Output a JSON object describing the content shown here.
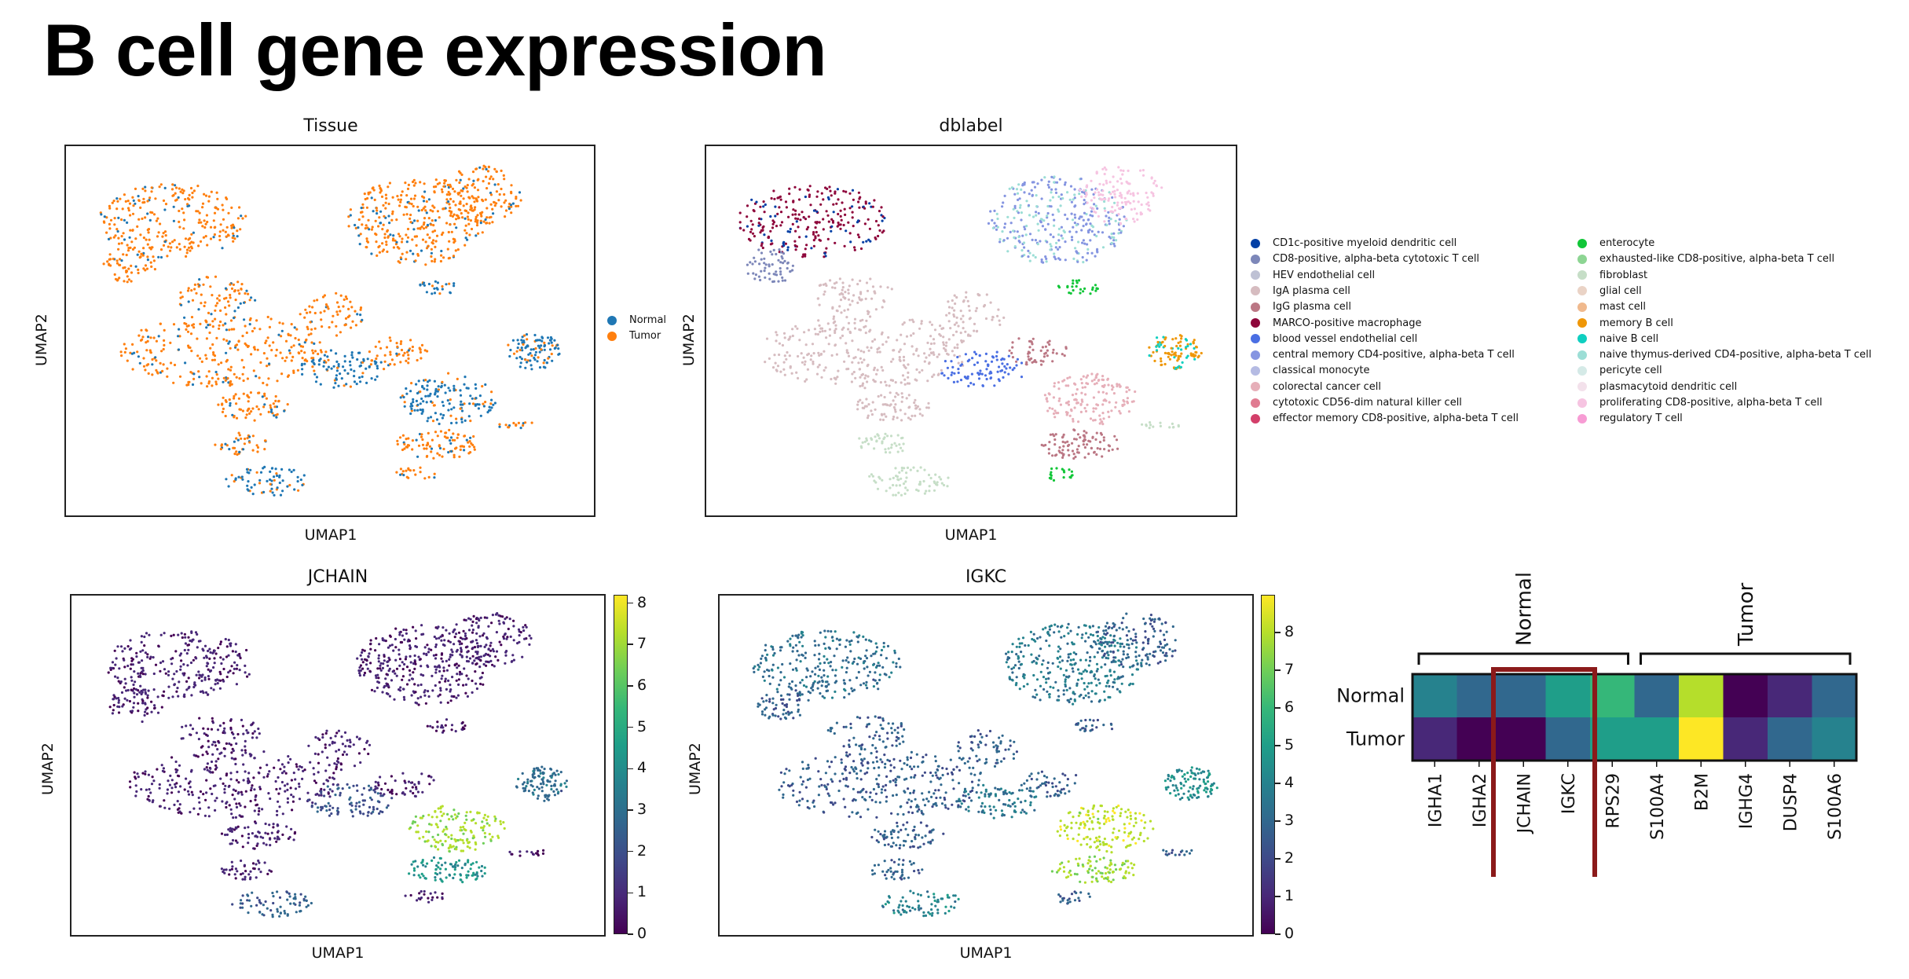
{
  "page": {
    "title": "B cell gene expression"
  },
  "panels": {
    "tissue": {
      "title": "Tissue",
      "xlabel": "UMAP1",
      "ylabel": "UMAP2",
      "legend": [
        {
          "label": "Normal",
          "color": "#1f77b4"
        },
        {
          "label": "Tumor",
          "color": "#ff7f0e"
        }
      ]
    },
    "dblabel": {
      "title": "dblabel",
      "xlabel": "UMAP1",
      "ylabel": "UMAP2",
      "legend": [
        {
          "label": "CD1c-positive myeloid dendritic cell",
          "color": "#023fa5"
        },
        {
          "label": "CD8-positive, alpha-beta cytotoxic T cell",
          "color": "#7d87b9"
        },
        {
          "label": "HEV endothelial cell",
          "color": "#bec1d4"
        },
        {
          "label": "IgA plasma cell",
          "color": "#d6bcc0"
        },
        {
          "label": "IgG plasma cell",
          "color": "#bb7784"
        },
        {
          "label": "MARCO-positive macrophage",
          "color": "#8e063b"
        },
        {
          "label": "blood vessel endothelial cell",
          "color": "#4a6fe3"
        },
        {
          "label": "central memory CD4-positive, alpha-beta T cell",
          "color": "#8595e1"
        },
        {
          "label": "classical monocyte",
          "color": "#b5bbe3"
        },
        {
          "label": "colorectal cancer cell",
          "color": "#e6afb9"
        },
        {
          "label": "cytotoxic CD56-dim natural killer cell",
          "color": "#e07b91"
        },
        {
          "label": "effector memory CD8-positive, alpha-beta T cell",
          "color": "#d33f6a"
        },
        {
          "label": "enterocyte",
          "color": "#11c638"
        },
        {
          "label": "exhausted-like CD8-positive, alpha-beta T cell",
          "color": "#8dd593"
        },
        {
          "label": "fibroblast",
          "color": "#c6dec7"
        },
        {
          "label": "glial cell",
          "color": "#ead3c6"
        },
        {
          "label": "mast cell",
          "color": "#f0b98d"
        },
        {
          "label": "memory B cell",
          "color": "#ef9708"
        },
        {
          "label": "naive B cell",
          "color": "#0fcfc0"
        },
        {
          "label": "naive thymus-derived CD4-positive, alpha-beta T cell",
          "color": "#9cded6"
        },
        {
          "label": "pericyte cell",
          "color": "#d5eae7"
        },
        {
          "label": "plasmacytoid dendritic cell",
          "color": "#f3e1eb"
        },
        {
          "label": "proliferating CD8-positive, alpha-beta T cell",
          "color": "#f6c4e1"
        },
        {
          "label": "regulatory T cell",
          "color": "#f79cd4"
        }
      ]
    },
    "jchain": {
      "title": "JCHAIN",
      "xlabel": "UMAP1",
      "ylabel": "UMAP2",
      "colorbar_ticks": [
        "0",
        "1",
        "2",
        "3",
        "4",
        "5",
        "6",
        "7",
        "8"
      ],
      "colorbar_range": [
        0,
        8.2
      ]
    },
    "igkc": {
      "title": "IGKC",
      "xlabel": "UMAP1",
      "ylabel": "UMAP2",
      "colorbar_ticks": [
        "0",
        "1",
        "2",
        "3",
        "4",
        "5",
        "6",
        "7",
        "8"
      ],
      "colorbar_range": [
        0,
        9.0
      ]
    }
  },
  "chart_data": [
    {
      "type": "scatter",
      "title": "Tissue",
      "xlabel": "UMAP1",
      "ylabel": "UMAP2",
      "series": [
        {
          "name": "Normal"
        },
        {
          "name": "Tumor"
        }
      ]
    },
    {
      "type": "scatter",
      "title": "dblabel",
      "xlabel": "UMAP1",
      "ylabel": "UMAP2"
    },
    {
      "type": "scatter",
      "title": "JCHAIN",
      "xlabel": "UMAP1",
      "ylabel": "UMAP2",
      "colorbar": {
        "min": 0,
        "max": 8.2,
        "ticks": [
          0,
          1,
          2,
          3,
          4,
          5,
          6,
          7,
          8
        ]
      }
    },
    {
      "type": "scatter",
      "title": "IGKC",
      "xlabel": "UMAP1",
      "ylabel": "UMAP2",
      "colorbar": {
        "min": 0,
        "max": 9.0,
        "ticks": [
          0,
          1,
          2,
          3,
          4,
          5,
          6,
          7,
          8
        ]
      }
    },
    {
      "type": "heatmap",
      "rows": [
        "Normal",
        "Tumor"
      ],
      "columns": [
        "IGHA1",
        "IGHA2",
        "JCHAIN",
        "IGKC",
        "RPS29",
        "S100A4",
        "B2M",
        "IGHG4",
        "DUSP4",
        "S100A6"
      ],
      "column_groups": [
        {
          "label": "Normal",
          "columns": [
            "IGHA1",
            "IGHA2",
            "JCHAIN",
            "IGKC",
            "RPS29"
          ]
        },
        {
          "label": "Tumor",
          "columns": [
            "S100A4",
            "B2M",
            "IGHG4",
            "DUSP4",
            "S100A6"
          ]
        }
      ],
      "values": [
        [
          0.45,
          0.35,
          0.3,
          0.55,
          0.72,
          0.3,
          0.85,
          0.02,
          0.15,
          0.3
        ],
        [
          0.12,
          0.02,
          0.02,
          0.35,
          0.6,
          0.58,
          1.0,
          0.1,
          0.35,
          0.45
        ]
      ],
      "highlight": {
        "columns": [
          "JCHAIN",
          "IGKC"
        ],
        "color": "#8b1a1a"
      }
    }
  ]
}
